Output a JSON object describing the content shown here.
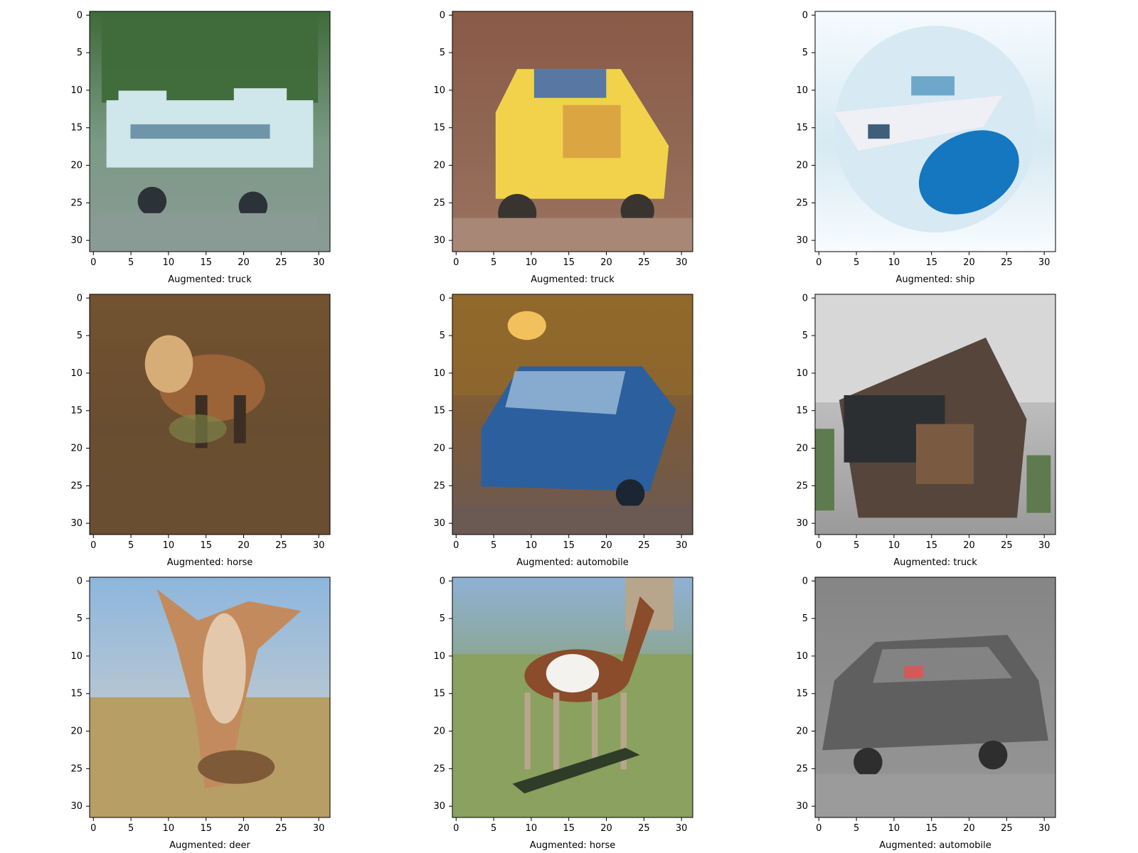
{
  "figure": {
    "panels": [
      {
        "label": "Augmented: truck",
        "scene": "truck-white",
        "palette": {
          "top": "#3f6b3a",
          "mid": "#7c9a86",
          "bottom": "#8a9b96",
          "main": "#cfe6ea",
          "accent": "#5e6f77",
          "shadow": "#2c3338",
          "extra": "#4f7a93"
        }
      },
      {
        "label": "Augmented: truck",
        "scene": "truck-yellow",
        "palette": {
          "top": "#8a5a46",
          "mid": "#95725f",
          "bottom": "#a98776",
          "main": "#f1d24a",
          "accent": "#5877a3",
          "shadow": "#39342f",
          "extra": "#c8803d"
        }
      },
      {
        "label": "Augmented: ship",
        "scene": "ship",
        "palette": {
          "top": "#f5fbff",
          "mid": "#d7e9f2",
          "bottom": "#f7fcff",
          "main": "#efeff6",
          "accent": "#6da8cb",
          "shadow": "#3e5f79",
          "extra": "#1477bf"
        }
      },
      {
        "label": "Augmented: horse",
        "scene": "horse-dark",
        "palette": {
          "top": "#8d6334",
          "mid": "#6a4e30",
          "bottom": "#6d5238",
          "main": "#9a6338",
          "accent": "#d7ad77",
          "shadow": "#3c2e22",
          "extra": "#7f8b4d"
        }
      },
      {
        "label": "Augmented: automobile",
        "scene": "car-blue",
        "palette": {
          "top": "#92692b",
          "mid": "#7b5a39",
          "bottom": "#6b5a54",
          "main": "#2c5f9d",
          "accent": "#b9d2ea",
          "shadow": "#1b2533",
          "extra": "#f2c15d"
        }
      },
      {
        "label": "Augmented: truck",
        "scene": "truck-dark",
        "palette": {
          "top": "#d7d7d7",
          "mid": "#b7b7b7",
          "bottom": "#9a9a9a",
          "main": "#56453a",
          "accent": "#7b5a42",
          "shadow": "#2c2f31",
          "extra": "#5e7b4f"
        }
      },
      {
        "label": "Augmented: deer",
        "scene": "deer",
        "palette": {
          "top": "#8db6dd",
          "mid": "#b8c7d2",
          "bottom": "#b79e64",
          "main": "#c38b5d",
          "accent": "#f0dfcb",
          "shadow": "#7f5a39",
          "extra": "#6f8a4e"
        }
      },
      {
        "label": "Augmented: horse",
        "scene": "horse-field",
        "palette": {
          "top": "#8fb1d4",
          "mid": "#8aa06f",
          "bottom": "#8aa15f",
          "main": "#8a4c2a",
          "accent": "#f4f2ef",
          "shadow": "#2e3c28",
          "extra": "#b7a68c"
        }
      },
      {
        "label": "Augmented: automobile",
        "scene": "car-gray",
        "palette": {
          "top": "#7b7b7b",
          "mid": "#8f8f8f",
          "bottom": "#9b9b9b",
          "main": "#5f5f5f",
          "accent": "#d45a5a",
          "shadow": "#2e2e2e",
          "extra": "#c8c8c8"
        }
      }
    ],
    "x_axis": {
      "min": -0.5,
      "max": 31.5,
      "ticks": [
        0,
        5,
        10,
        15,
        20,
        25,
        30
      ]
    },
    "y_axis": {
      "min": -0.5,
      "max": 31.5,
      "ticks": [
        0,
        5,
        10,
        15,
        20,
        25,
        30
      ]
    }
  }
}
